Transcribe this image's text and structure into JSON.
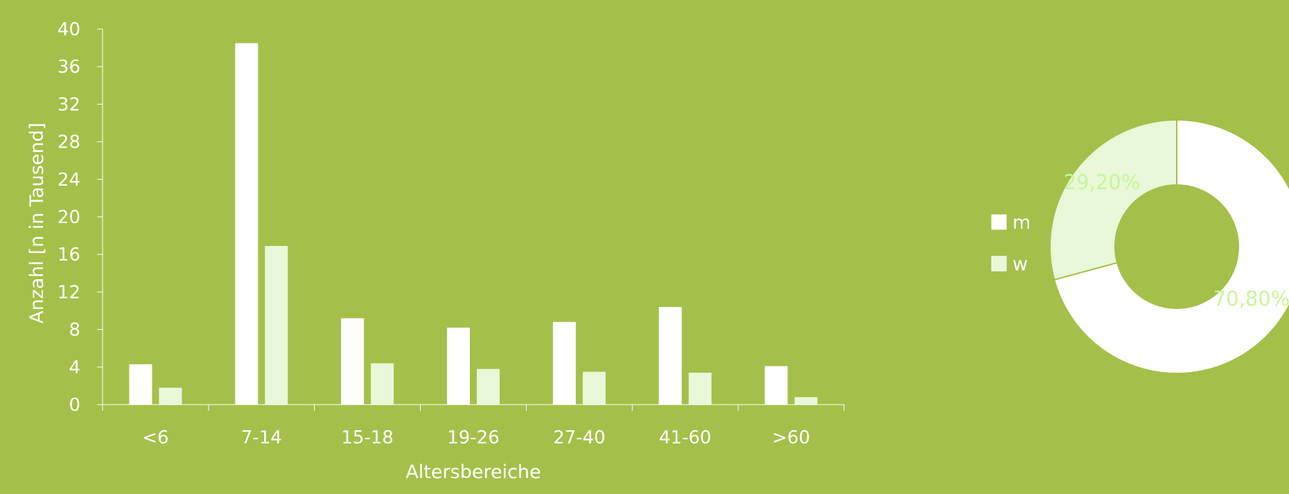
{
  "colors": {
    "background": "#a4c04a",
    "m": "#ffffff",
    "w": "#e8f8d8",
    "axis": "#ffffff",
    "pie_label": "#c8f59a"
  },
  "chart_data": [
    {
      "type": "bar",
      "categories": [
        "<6",
        "7-14",
        "15-18",
        "19-26",
        "27-40",
        "41-60",
        ">60"
      ],
      "series": [
        {
          "name": "m",
          "values": [
            4.3,
            38.5,
            9.2,
            8.2,
            8.8,
            10.4,
            4.1
          ]
        },
        {
          "name": "w",
          "values": [
            1.8,
            16.9,
            4.4,
            3.8,
            3.5,
            3.4,
            0.8
          ]
        }
      ],
      "xlabel": "Altersbereiche",
      "ylabel": "Anzahl [n in Tausend]",
      "ylim": [
        0,
        40
      ],
      "yticks": [
        0,
        4,
        8,
        12,
        16,
        20,
        24,
        28,
        32,
        36,
        40
      ],
      "grid": false
    },
    {
      "type": "pie",
      "donut": true,
      "labels": [
        "m",
        "w"
      ],
      "values": [
        70.8,
        29.2
      ],
      "data_labels": [
        "70,80%",
        "29,20%"
      ],
      "legend": [
        "m",
        "w"
      ],
      "legend_position": "left"
    }
  ]
}
